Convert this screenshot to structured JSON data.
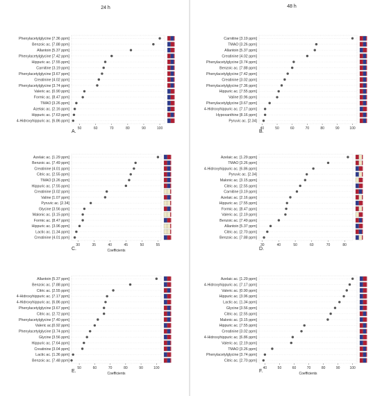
{
  "columns": [
    "24 h",
    "48 h"
  ],
  "colors": {
    "point": "#555555",
    "red": "#b01e32",
    "blue": "#2d3a8c",
    "beige": "#efe8c6",
    "grid": "#cfcfcf",
    "divider": "#bbbbbb"
  },
  "chart_data": [
    {
      "type": "scatter",
      "panel": "A.",
      "xlim": [
        45,
        103
      ],
      "xticks": [
        50,
        60,
        70,
        80,
        90,
        100
      ],
      "xlabel": "",
      "categories": [
        "Phenylacetylglycine [7.36 ppm]",
        "Benzoic ac. [7.88 ppm]",
        "Allantoin [5.37 ppm]",
        "Phenylacetylglycine [7.42 ppm]",
        "Hippuric ac. [7.55 ppm]",
        "Carnitine [3.19 ppm]",
        "Phenylacetylglycine [3.67 ppm]",
        "Creatinine [4.02 ppm]",
        "Phenylacetylglycine [3.74 ppm]",
        "Valeric ac. [0.90 ppm]",
        "Formic ac. [8.47 ppm]",
        "TMAO [3.26 ppm]",
        "Azelaic ac. [2.16 ppm]",
        "Hippuric ac. [7.63 ppm]",
        "4-Hidroxyhippuric ac. [6.86 ppm]"
      ],
      "values": [
        100,
        96,
        82,
        70,
        66,
        65,
        64,
        62,
        61,
        53,
        52,
        48,
        47,
        46.5,
        46
      ],
      "indicators": [
        [
          "red",
          "blue"
        ],
        [
          "blue",
          "red"
        ],
        [
          "blue",
          "red"
        ],
        [
          "red",
          "blue"
        ],
        [
          "red",
          "blue"
        ],
        [
          "red",
          "blue"
        ],
        [
          "red",
          "blue"
        ],
        [
          "red",
          "blue"
        ],
        [
          "red",
          "blue"
        ],
        [
          "blue",
          "red"
        ],
        [
          "blue",
          "red"
        ],
        [
          "blue",
          "red"
        ],
        [
          "blue",
          "red"
        ],
        [
          "red",
          "blue"
        ],
        [
          "blue",
          "red"
        ]
      ]
    },
    {
      "type": "scatter",
      "panel": "B.",
      "xlim": [
        38,
        103
      ],
      "xticks": [
        40,
        50,
        60,
        70,
        80,
        90,
        100
      ],
      "xlabel": "",
      "categories": [
        "Carnitine [3.19 ppm]",
        "TMAO [3.26 ppm]",
        "Allantoin [5.37 ppm]",
        "Creatinine [4.02 ppm]",
        "Phenylacetylglycine [3.74 ppm]",
        "Benzoic ac. [7.88 ppm]",
        "Phenylacetylglycine [7.42 ppm]",
        "Creatinine [3.02 ppm]",
        "Phenylacetylglycine [7.36 ppm]",
        "Hippuric ac. [7.55 ppm]",
        "Valine [0.96 ppm]",
        "Phenylacetylglycine [3.67 ppm]",
        "4-Hidroxyhippuric ac. [7.17 ppm]",
        "Hypoxanthine [8.16 ppm]",
        "Pyruvic ac. [2.34]"
      ],
      "values": [
        100,
        76,
        75,
        70,
        61,
        60,
        57,
        55,
        53,
        51,
        50,
        45,
        42,
        42,
        41
      ],
      "indicators": [
        [
          "red",
          "blue"
        ],
        [
          "red",
          "blue"
        ],
        [
          "blue",
          "red"
        ],
        [
          "red",
          "blue"
        ],
        [
          "red",
          "blue"
        ],
        [
          "red",
          "blue"
        ],
        [
          "red",
          "blue"
        ],
        [
          "red",
          "blue"
        ],
        [
          "red",
          "blue"
        ],
        [
          "red",
          "blue"
        ],
        [
          "red",
          "blue"
        ],
        [
          "red",
          "blue"
        ],
        [
          "blue",
          "red"
        ],
        [
          "red",
          "blue"
        ],
        [
          "red",
          "blue"
        ]
      ]
    },
    {
      "type": "scatter",
      "panel": "C.",
      "xlim": [
        28,
        56
      ],
      "xticks": [
        30,
        35,
        40,
        45,
        50,
        55
      ],
      "xlabel": "Coefficients",
      "categories": [
        "Azelaic ac. [1.29 ppm]",
        "Benzoic ac. [7.49 ppm]",
        "Creatinine [4.01 ppm]",
        "Citric ac. [2.55 ppm]",
        "TMAO [3.26 ppm]",
        "Hippuric ac. [7.55 ppm]",
        "Creatinine [3.02 ppm]",
        "Valine [1.07 ppm]",
        "Pyruvic ac. [2.34]",
        "Glycine [3.56 ppm]",
        "Malonic ac. [3.15 ppm]",
        "Formic ac. [8.47 ppm]",
        "Hippuric ac. [3.96 ppm]",
        "Lactic ac. [1.34 ppm]",
        "Creatinine [4.01 ppm]"
      ],
      "values": [
        55,
        48,
        47.5,
        46.5,
        46,
        45,
        39,
        38.5,
        34,
        32,
        31.5,
        31.5,
        30.5,
        29.5,
        29
      ],
      "indicators": [
        [
          "blue",
          "red"
        ],
        [
          "red",
          "blue"
        ],
        [
          "red",
          "blue"
        ],
        [
          "red",
          "blue"
        ],
        [
          "red",
          "blue"
        ],
        [
          "red",
          "blue"
        ],
        [
          "beige",
          "beige"
        ],
        [
          "red",
          "blue"
        ],
        [
          "beige",
          "beige"
        ],
        [
          "red",
          "blue"
        ],
        [
          "beige",
          "beige"
        ],
        [
          "blue",
          "red"
        ],
        [
          "beige",
          "beige"
        ],
        [
          "beige",
          "beige"
        ],
        [
          "blue",
          "red"
        ]
      ]
    },
    {
      "type": "scatter",
      "panel": "D.",
      "xlim": [
        28,
        85
      ],
      "xticks": [
        30,
        40,
        50,
        60,
        70,
        80
      ],
      "xlabel": "",
      "categories": [
        "Azelaic ac. [1.29 ppm]",
        "TMAO [3.26 ppm]",
        "4-Hidroxyhippuric ac. [6.86 ppm]",
        "Pyruvic ac. [2.34]",
        "Malonic ac. [3.15 ppm]",
        "Citric ac. [2.55 ppm]",
        "Carnitine [3.19 ppm]",
        "Azelaic ac. [2.16 ppm]",
        "Hippuric ac. [7.55 ppm]",
        "Formic ac. [8.47 ppm]",
        "Valeric ac. [2.19 ppm]",
        "Benzoic ac. [7.49 ppm]",
        "Allantoin [5.37 ppm]",
        "Citric ac. [2.70 ppm]",
        "Benzoic ac. [7.88 ppm]"
      ],
      "values": [
        82,
        70,
        61,
        57,
        56,
        53,
        51,
        47,
        45,
        44.5,
        44,
        40,
        35,
        33,
        31
      ],
      "indicators": [
        [
          "red",
          "beige"
        ],
        [
          "red",
          "beige"
        ],
        [
          "blue",
          "red"
        ],
        [
          "blue",
          "beige"
        ],
        [
          "beige",
          "red"
        ],
        [
          "blue",
          "red"
        ],
        [
          "red",
          "blue"
        ],
        [
          "red",
          "beige"
        ],
        [
          "blue",
          "red"
        ],
        [
          "red",
          "beige"
        ],
        [
          "beige",
          "red"
        ],
        [
          "red",
          "blue"
        ],
        [
          "blue",
          "red"
        ],
        [
          "red",
          "blue"
        ],
        [
          "blue",
          "beige"
        ]
      ]
    },
    {
      "type": "scatter",
      "panel": "E.",
      "xlim": [
        45,
        103
      ],
      "xticks": [
        50,
        60,
        70,
        80,
        90,
        100
      ],
      "xlabel": "Coefficients",
      "categories": [
        "Allantoin [5.37 ppm]",
        "Benzoic ac. [7.88 ppm]",
        "Citric ac. [2.55 ppm]",
        "4-Hidroxyhippuric ac. [7.17 ppm]",
        "4-Hidroxyhippuric ac. [6.86 ppm]",
        "Phenylacetylglycine [3.67 ppm]",
        "Citric ac. [2.72 ppm]",
        "Phenylacetylglycine [7.40 ppm]",
        "Valeric ac.[0.92 ppm]",
        "Phenylacetylglycine [3.74 ppm]",
        "Glycine [3.56 ppm]",
        "Hippuric ac. [7.64 ppm]",
        "Creatinine [3.04 ppm]",
        "Lactic ac. [1.36 ppm]",
        "Benzoic ac. [7.48 ppm]"
      ],
      "values": [
        100,
        83,
        72,
        68,
        67,
        66,
        66,
        62,
        60,
        57,
        55,
        53,
        52,
        46,
        45
      ],
      "indicators": [
        [
          "blue",
          "red"
        ],
        [
          "blue",
          "red"
        ],
        [
          "red",
          "blue"
        ],
        [
          "blue",
          "red"
        ],
        [
          "blue",
          "red"
        ],
        [
          "red",
          "blue"
        ],
        [
          "red",
          "blue"
        ],
        [
          "red",
          "blue"
        ],
        [
          "blue",
          "red"
        ],
        [
          "red",
          "blue"
        ],
        [
          "blue",
          "red"
        ],
        [
          "red",
          "blue"
        ],
        [
          "red",
          "blue"
        ],
        [
          "blue",
          "red"
        ],
        [
          "red",
          "blue"
        ]
      ]
    },
    {
      "type": "scatter",
      "panel": "F.",
      "xlim": [
        36,
        103
      ],
      "xticks": [
        40,
        50,
        60,
        70,
        80,
        90,
        100
      ],
      "xlabel": "Coefficients",
      "categories": [
        "Azelaic ac. [1.29 ppm]",
        "4-Hidroxyhippuric ac. [7.17 ppm]",
        "Valeric ac. [0.90 ppm]",
        "Hippuric ac. [3.96 ppm]",
        "Lactic ac. [1.34 ppm]",
        "Glycine [3.56 ppm]",
        "Citric ac. [2.55 ppm]",
        "Malonic ac. [3.15 ppm]",
        "Hippuric ac. [7.55 ppm]",
        "Creatinine [3.02 ppm]",
        "4-Hidroxyhippuric ac. [6.86 ppm]",
        "Valeric ac. [2.19 ppm]",
        "TMAO [3.26 ppm]",
        "Phenylacetylglycine [3.74 ppm]",
        "Citric ac. [2.70 ppm]"
      ],
      "values": [
        100,
        98,
        96,
        94,
        91,
        88,
        85,
        83,
        67,
        65,
        59,
        58,
        45,
        40,
        39
      ],
      "indicators": [
        [
          "blue",
          "red"
        ],
        [
          "blue",
          "red"
        ],
        [
          "blue",
          "red"
        ],
        [
          "blue",
          "red"
        ],
        [
          "blue",
          "red"
        ],
        [
          "blue",
          "red"
        ],
        [
          "red",
          "blue"
        ],
        [
          "blue",
          "red"
        ],
        [
          "red",
          "blue"
        ],
        [
          "red",
          "blue"
        ],
        [
          "blue",
          "red"
        ],
        [
          "blue",
          "red"
        ],
        [
          "red",
          "blue"
        ],
        [
          "red",
          "blue"
        ],
        [
          "red",
          "blue"
        ]
      ]
    }
  ]
}
